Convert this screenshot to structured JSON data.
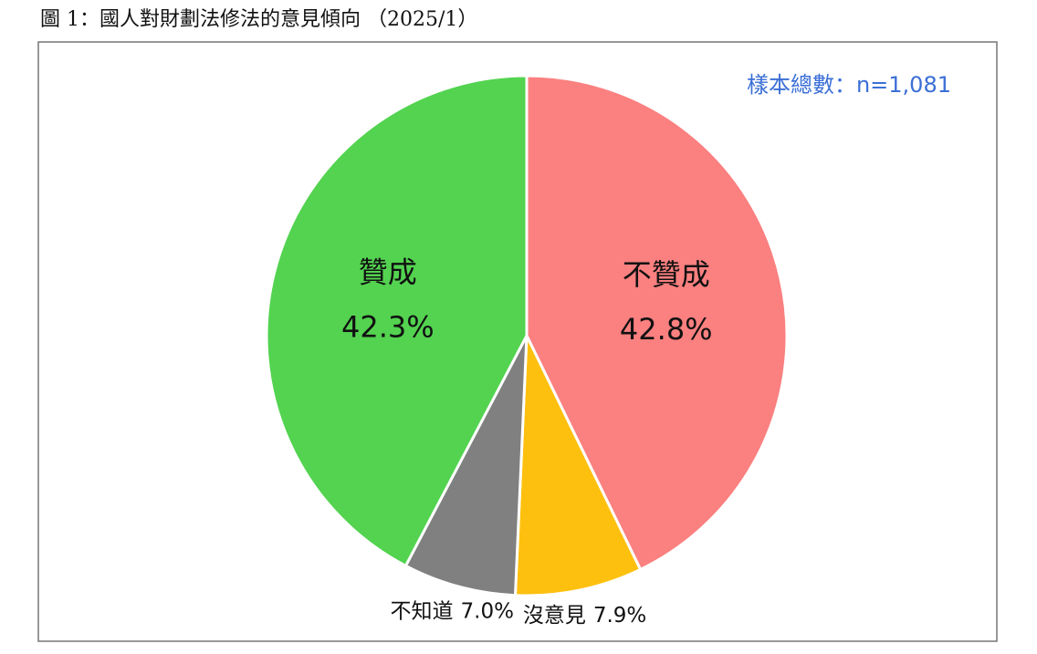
{
  "chart_data": {
    "type": "pie",
    "title": "圖 1：國人對財劃法修法的意見傾向 （2025/1）",
    "annotation": "樣本總數：n=1,081",
    "categories": [
      "不贊成",
      "沒意見",
      "不知道",
      "贊成"
    ],
    "values": [
      42.8,
      7.9,
      7.0,
      42.3
    ],
    "value_labels": [
      "42.8%",
      "7.9%",
      "7.0%",
      "42.3%"
    ],
    "colors": [
      "#fb8080",
      "#fec00f",
      "#808080",
      "#53d350"
    ]
  }
}
